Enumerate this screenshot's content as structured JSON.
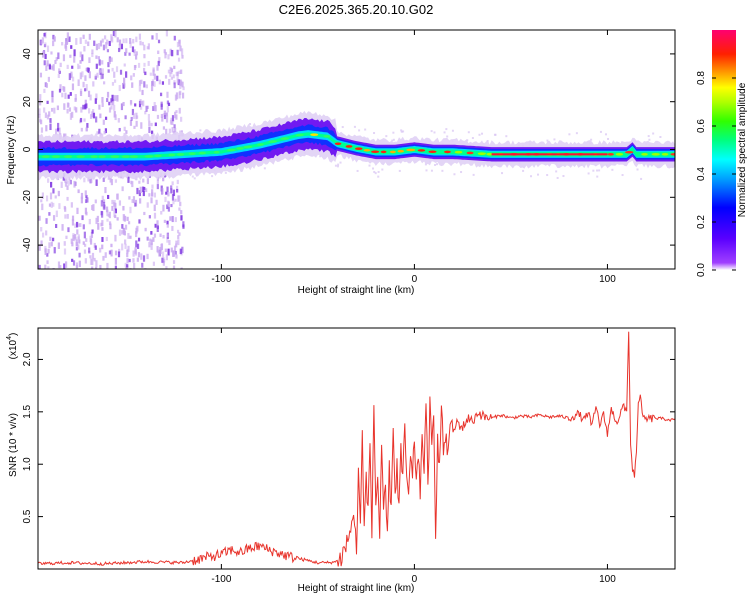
{
  "figure_title": "C2E6.2025.365.20.10.G02",
  "colors": {
    "snr_line": "#e8342c",
    "spectrogram_background": "#ffffff",
    "colorbar_stops": [
      "#7a00ff",
      "#5020ff",
      "#0000ff",
      "#0080ff",
      "#00e0ff",
      "#00ffa0",
      "#00ff00",
      "#a0ff00",
      "#ffff00",
      "#ffa000",
      "#ff4000",
      "#ff0000",
      "#ff0060",
      "#ff0080"
    ]
  },
  "chart_data": [
    {
      "type": "heatmap",
      "name": "spectrogram",
      "title": "",
      "xlabel": "Height of straight line (km)",
      "ylabel": "Frequency (Hz)",
      "xlim": [
        -195,
        135
      ],
      "ylim": [
        -50,
        50
      ],
      "x_ticks": [
        -100,
        0,
        100
      ],
      "x_tick_labels": [
        "-100",
        "0",
        "100"
      ],
      "y_ticks": [
        -40,
        -20,
        0,
        20,
        40
      ],
      "y_tick_labels": [
        "-40",
        "-20",
        "0",
        "20",
        "40"
      ],
      "ridge": {
        "x": [
          -195,
          -180,
          -160,
          -140,
          -120,
          -100,
          -80,
          -70,
          -60,
          -55,
          -50,
          -45,
          -40,
          -35,
          -30,
          -20,
          -10,
          0,
          10,
          20,
          40,
          60,
          80,
          100,
          110,
          113,
          115,
          120,
          135
        ],
        "freq": [
          -3,
          -3,
          -3,
          -3,
          -2,
          -1,
          2,
          4,
          6,
          6.5,
          6,
          5.5,
          2.5,
          1.5,
          0.5,
          -1,
          -1,
          0,
          -1,
          -1,
          -2,
          -2,
          -2,
          -2,
          -2,
          0,
          -2,
          -2,
          -2
        ]
      },
      "colorbar": {
        "label": "Normalized spectral amplitude",
        "range": [
          0,
          1
        ],
        "ticks": [
          0.0,
          0.2,
          0.4,
          0.6,
          0.8
        ],
        "tick_labels": [
          "0.0",
          "0.2",
          "0.4",
          "0.6",
          "0.8"
        ]
      }
    },
    {
      "type": "line",
      "name": "snr",
      "title": "",
      "xlabel": "Height of straight line (km)",
      "ylabel": "SNR (10 * v/v)",
      "y_scale_note": "(x10",
      "y_scale_exponent": "4",
      "xlim": [
        -195,
        135
      ],
      "ylim": [
        0,
        2.3
      ],
      "x_ticks": [
        -100,
        0,
        100
      ],
      "x_tick_labels": [
        "-100",
        "0",
        "100"
      ],
      "y_ticks": [
        0.5,
        1.0,
        1.5,
        2.0
      ],
      "y_tick_labels": [
        "0.5",
        "1.0",
        "1.5",
        "2.0"
      ],
      "series": [
        {
          "name": "SNR",
          "x": [
            -195,
            -180,
            -160,
            -140,
            -120,
            -110,
            -100,
            -95,
            -90,
            -85,
            -80,
            -75,
            -70,
            -65,
            -60,
            -55,
            -50,
            -45,
            -40,
            -38,
            -36,
            -34,
            -32,
            -30,
            -29,
            -28,
            -27,
            -26,
            -25,
            -24,
            -23,
            -22,
            -21,
            -20,
            -19,
            -18,
            -17,
            -16,
            -15,
            -14,
            -13,
            -12,
            -11,
            -10,
            -9,
            -8,
            -7,
            -6,
            -5,
            -4,
            -3,
            -2,
            -1,
            0,
            1,
            2,
            3,
            4,
            5,
            6,
            7,
            8,
            9,
            10,
            11,
            12,
            13,
            14,
            15,
            16,
            17,
            18,
            20,
            22,
            25,
            28,
            30,
            33,
            36,
            40,
            45,
            50,
            55,
            60,
            65,
            70,
            75,
            80,
            85,
            88,
            90,
            92,
            94,
            96,
            98,
            100,
            102,
            105,
            108,
            110,
            111,
            112,
            113,
            114,
            115,
            116,
            117,
            118,
            120,
            125,
            130,
            135
          ],
          "values": [
            0.05,
            0.06,
            0.05,
            0.07,
            0.06,
            0.1,
            0.14,
            0.18,
            0.16,
            0.2,
            0.22,
            0.18,
            0.15,
            0.12,
            0.1,
            0.08,
            0.06,
            0.06,
            0.07,
            0.1,
            0.2,
            0.3,
            0.5,
            0.25,
            0.9,
            0.4,
            1.3,
            0.3,
            1.0,
            0.5,
            1.2,
            0.35,
            1.6,
            0.6,
            0.9,
            0.3,
            1.1,
            0.45,
            0.8,
            0.25,
            1.0,
            0.5,
            1.45,
            0.7,
            1.0,
            0.55,
            1.15,
            0.8,
            1.35,
            0.9,
            0.65,
            1.05,
            0.85,
            1.2,
            0.9,
            1.0,
            0.75,
            1.3,
            1.0,
            1.5,
            0.8,
            1.55,
            1.1,
            1.5,
            0.4,
            1.2,
            1.0,
            1.5,
            1.15,
            1.25,
            1.1,
            1.35,
            1.3,
            1.4,
            1.35,
            1.45,
            1.4,
            1.5,
            1.45,
            1.44,
            1.47,
            1.44,
            1.46,
            1.45,
            1.47,
            1.45,
            1.46,
            1.44,
            1.48,
            1.42,
            1.5,
            1.35,
            1.55,
            1.38,
            1.47,
            1.3,
            1.52,
            1.4,
            1.55,
            1.5,
            2.3,
            1.2,
            0.95,
            0.9,
            1.1,
            1.55,
            1.7,
            1.45,
            1.43,
            1.44,
            1.43,
            1.42
          ]
        }
      ]
    }
  ]
}
